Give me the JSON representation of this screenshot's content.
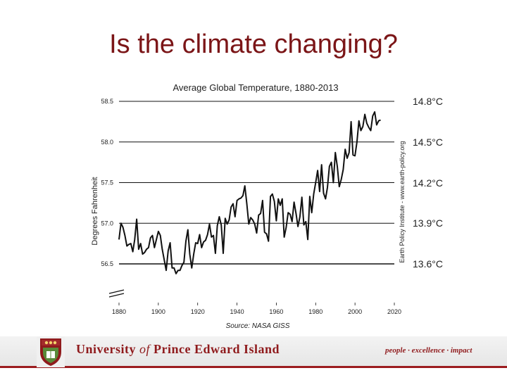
{
  "slide": {
    "title": "Is the climate changing?"
  },
  "chart_data": {
    "type": "line",
    "title": "Average Global Temperature, 1880-2013",
    "ylabel": "Degrees Fahrenheit",
    "xlabel": "",
    "source": "Source: NASA GISS",
    "side_credit": "Earth Policy Institute - www.earth-policy.org",
    "xlim": [
      1880,
      2020
    ],
    "ylim": [
      56.5,
      58.5
    ],
    "x_ticks": [
      1880,
      1900,
      1920,
      1940,
      1960,
      1980,
      2000,
      2020
    ],
    "y_ticks": [
      "58.5",
      "58.0",
      "57.5",
      "57.0",
      "56.5"
    ],
    "y_tick_values": [
      58.5,
      58.0,
      57.5,
      57.0,
      56.5
    ],
    "celsius_labels": [
      "14.8°C",
      "14.5°C",
      "14.2°C",
      "13.9°C",
      "13.6°C"
    ],
    "grid": "horizontal",
    "axis_break": true,
    "series": [
      {
        "name": "Average Global Temperature",
        "color": "#111111",
        "x": [
          1880,
          1881,
          1882,
          1883,
          1884,
          1885,
          1886,
          1887,
          1888,
          1889,
          1890,
          1891,
          1892,
          1893,
          1894,
          1895,
          1896,
          1897,
          1898,
          1899,
          1900,
          1901,
          1902,
          1903,
          1904,
          1905,
          1906,
          1907,
          1908,
          1909,
          1910,
          1911,
          1912,
          1913,
          1914,
          1915,
          1916,
          1917,
          1918,
          1919,
          1920,
          1921,
          1922,
          1923,
          1924,
          1925,
          1926,
          1927,
          1928,
          1929,
          1930,
          1931,
          1932,
          1933,
          1934,
          1935,
          1936,
          1937,
          1938,
          1939,
          1940,
          1941,
          1942,
          1943,
          1944,
          1945,
          1946,
          1947,
          1948,
          1949,
          1950,
          1951,
          1952,
          1953,
          1954,
          1955,
          1956,
          1957,
          1958,
          1959,
          1960,
          1961,
          1962,
          1963,
          1964,
          1965,
          1966,
          1967,
          1968,
          1969,
          1970,
          1971,
          1972,
          1973,
          1974,
          1975,
          1976,
          1977,
          1978,
          1979,
          1980,
          1981,
          1982,
          1983,
          1984,
          1985,
          1986,
          1987,
          1988,
          1989,
          1990,
          1991,
          1992,
          1993,
          1994,
          1995,
          1996,
          1997,
          1998,
          1999,
          2000,
          2001,
          2002,
          2003,
          2004,
          2005,
          2006,
          2007,
          2008,
          2009,
          2010,
          2011,
          2012,
          2013
        ],
        "values": [
          56.8,
          57.0,
          56.95,
          56.85,
          56.72,
          56.74,
          56.75,
          56.65,
          56.8,
          57.05,
          56.68,
          56.75,
          56.62,
          56.64,
          56.68,
          56.7,
          56.82,
          56.85,
          56.7,
          56.8,
          56.9,
          56.85,
          56.68,
          56.55,
          56.42,
          56.66,
          56.76,
          56.45,
          56.45,
          56.38,
          56.42,
          56.42,
          56.48,
          56.52,
          56.78,
          56.92,
          56.62,
          56.45,
          56.62,
          56.76,
          56.75,
          56.86,
          56.7,
          56.77,
          56.79,
          56.86,
          56.99,
          56.83,
          56.85,
          56.63,
          56.97,
          57.08,
          56.98,
          56.63,
          57.06,
          56.99,
          57.04,
          57.2,
          57.24,
          57.08,
          57.28,
          57.3,
          57.31,
          57.34,
          57.46,
          57.24,
          56.99,
          57.07,
          57.04,
          56.99,
          56.88,
          57.1,
          57.12,
          57.28,
          56.89,
          56.87,
          56.78,
          57.33,
          57.36,
          57.27,
          57.03,
          57.3,
          57.22,
          57.3,
          56.83,
          56.95,
          57.13,
          57.11,
          57.02,
          57.26,
          57.12,
          56.96,
          57.08,
          57.32,
          56.98,
          57.02,
          56.8,
          57.33,
          57.13,
          57.36,
          57.5,
          57.65,
          57.39,
          57.72,
          57.37,
          57.3,
          57.44,
          57.7,
          57.75,
          57.5,
          57.87,
          57.7,
          57.45,
          57.54,
          57.66,
          57.91,
          57.8,
          57.87,
          58.25,
          57.84,
          57.83,
          58.0,
          58.26,
          58.14,
          58.19,
          58.34,
          58.23,
          58.18,
          58.14,
          58.32,
          58.37,
          58.21,
          58.26,
          58.27
        ]
      }
    ]
  },
  "footer": {
    "university_prefix": "University ",
    "university_of": "of",
    "university_suffix": " Prince Edward Island",
    "tagline": "people · excellence · impact",
    "brand_color": "#8f1a1c"
  }
}
